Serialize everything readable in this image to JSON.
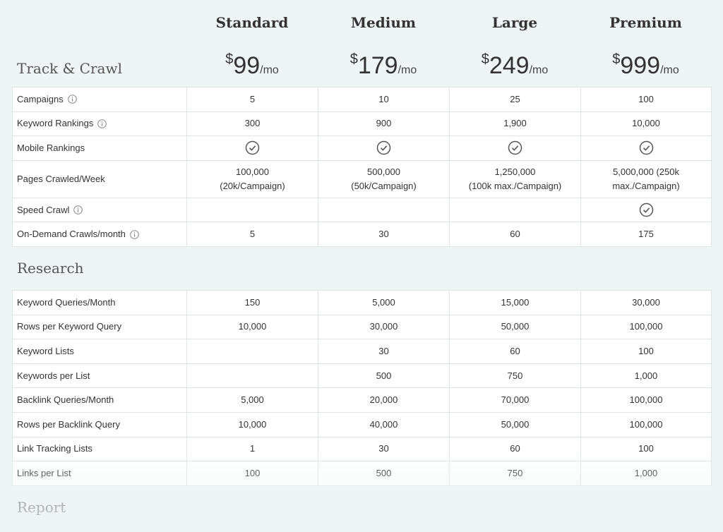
{
  "plans": [
    {
      "name": "Standard",
      "currency": "$",
      "price": "99",
      "period": "/mo"
    },
    {
      "name": "Medium",
      "currency": "$",
      "price": "179",
      "period": "/mo"
    },
    {
      "name": "Large",
      "currency": "$",
      "price": "249",
      "period": "/mo"
    },
    {
      "name": "Premium",
      "currency": "$",
      "price": "999",
      "period": "/mo"
    }
  ],
  "sections": [
    {
      "title": "Track & Crawl",
      "rows": [
        {
          "label": "Campaigns",
          "info": true,
          "cells": [
            "5",
            "10",
            "25",
            "100"
          ]
        },
        {
          "label": "Keyword Rankings",
          "info": true,
          "cells": [
            "300",
            "900",
            "1,900",
            "10,000"
          ]
        },
        {
          "label": "Mobile Rankings",
          "info": false,
          "cells": [
            true,
            true,
            true,
            true
          ]
        },
        {
          "label": "Pages Crawled/Week",
          "info": false,
          "cells": [
            [
              "100,000",
              "(20k/Campaign)"
            ],
            [
              "500,000",
              "(50k/Campaign)"
            ],
            [
              "1,250,000",
              "(100k max./Campaign)"
            ],
            [
              "5,000,000 (250k",
              "max./Campaign)"
            ]
          ]
        },
        {
          "label": "Speed Crawl",
          "info": true,
          "cells": [
            null,
            null,
            null,
            true
          ]
        },
        {
          "label": "On-Demand Crawls/month",
          "info": true,
          "cells": [
            "5",
            "30",
            "60",
            "175"
          ]
        }
      ]
    },
    {
      "title": "Research",
      "rows": [
        {
          "label": "Keyword Queries/Month",
          "info": false,
          "cells": [
            "150",
            "5,000",
            "15,000",
            "30,000"
          ]
        },
        {
          "label": "Rows per Keyword Query",
          "info": false,
          "cells": [
            "10,000",
            "30,000",
            "50,000",
            "100,000"
          ]
        },
        {
          "label": "Keyword Lists",
          "info": false,
          "cells": [
            null,
            "30",
            "60",
            "100"
          ]
        },
        {
          "label": "Keywords per List",
          "info": false,
          "cells": [
            null,
            "500",
            "750",
            "1,000"
          ]
        },
        {
          "label": "Backlink Queries/Month",
          "info": false,
          "cells": [
            "5,000",
            "20,000",
            "70,000",
            "100,000"
          ]
        },
        {
          "label": "Rows per Backlink Query",
          "info": false,
          "cells": [
            "10,000",
            "40,000",
            "50,000",
            "100,000"
          ]
        },
        {
          "label": "Link Tracking Lists",
          "info": false,
          "cells": [
            "1",
            "30",
            "60",
            "100"
          ]
        },
        {
          "label": "Links per List",
          "info": false,
          "cells": [
            "100",
            "500",
            "750",
            "1,000"
          ]
        }
      ]
    },
    {
      "title": "Report"
    }
  ]
}
